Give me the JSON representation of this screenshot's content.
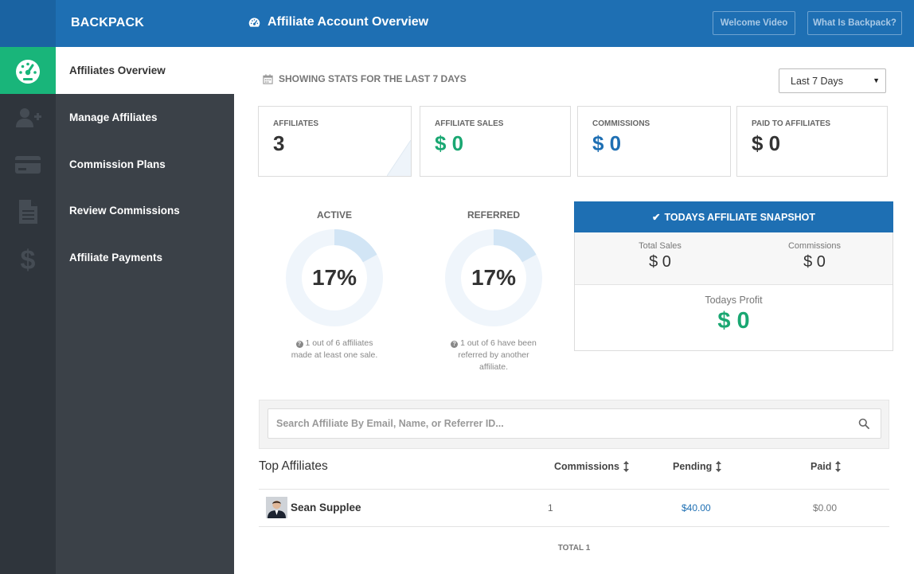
{
  "header": {
    "brand": "BACKPACK",
    "title": "Affiliate Account Overview",
    "title_icon": "dashboard-icon",
    "buttons": {
      "welcome": "Welcome Video",
      "what": "What Is Backpack?"
    },
    "colors": {
      "bar": "#1e6fb3"
    }
  },
  "sidebar": {
    "icons": [
      "dashboard-icon",
      "add-user-icon",
      "credit-card-icon",
      "document-icon",
      "dollar-icon"
    ],
    "items": [
      {
        "label": "Affiliates Overview",
        "active": true
      },
      {
        "label": "Manage Affiliates"
      },
      {
        "label": "Commission Plans"
      },
      {
        "label": "Review Commissions"
      },
      {
        "label": "Affiliate Payments"
      }
    ],
    "colors": {
      "active": "#19b57a",
      "rail": "#2f353c",
      "menu": "#3b4148"
    }
  },
  "stats": {
    "heading": "SHOWING STATS FOR THE LAST 7 DAYS",
    "range": {
      "selected": "Last 7 Days"
    },
    "cards": [
      {
        "label": "AFFILIATES",
        "value": "3"
      },
      {
        "label": "AFFILIATE SALES",
        "value": "$ 0"
      },
      {
        "label": "COMMISSIONS",
        "value": "$ 0"
      },
      {
        "label": "PAID TO AFFILIATES",
        "value": "$ 0"
      }
    ]
  },
  "donuts": [
    {
      "title": "ACTIVE",
      "percent": "17%",
      "fraction": 0.17,
      "note": "1 out of 6 affiliates made at least one sale."
    },
    {
      "title": "REFERRED",
      "percent": "17%",
      "fraction": 0.17,
      "note": "1 out of 6 have been referred by another affiliate."
    }
  ],
  "snapshot": {
    "title": "TODAYS AFFILIATE SNAPSHOT",
    "total_sales": {
      "label": "Total Sales",
      "value": "$ 0"
    },
    "commissions": {
      "label": "Commissions",
      "value": "$ 0"
    },
    "profit": {
      "label": "Todays Profit",
      "value": "$ 0"
    }
  },
  "search": {
    "placeholder": "Search Affiliate By Email, Name, or Referrer ID..."
  },
  "table": {
    "title": "Top Affiliates",
    "columns": [
      "Commissions",
      "Pending",
      "Paid"
    ],
    "rows": [
      {
        "name": "Sean Supplee",
        "commissions": "1",
        "pending": "$40.00",
        "paid": "$0.00"
      }
    ],
    "total": "TOTAL 1"
  }
}
